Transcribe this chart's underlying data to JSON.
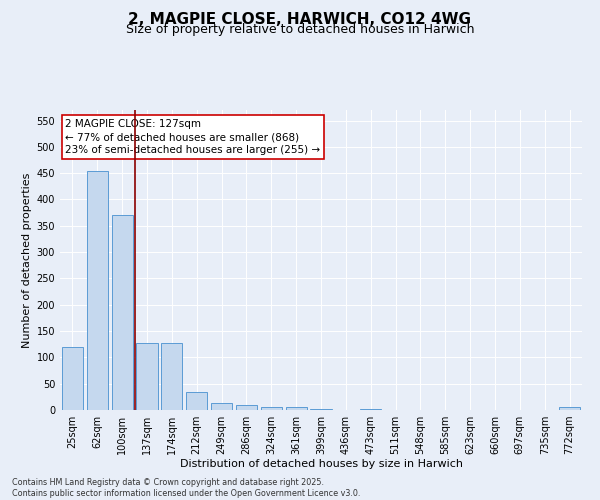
{
  "title": "2, MAGPIE CLOSE, HARWICH, CO12 4WG",
  "subtitle": "Size of property relative to detached houses in Harwich",
  "xlabel": "Distribution of detached houses by size in Harwich",
  "ylabel": "Number of detached properties",
  "categories": [
    "25sqm",
    "62sqm",
    "100sqm",
    "137sqm",
    "174sqm",
    "212sqm",
    "249sqm",
    "286sqm",
    "324sqm",
    "361sqm",
    "399sqm",
    "436sqm",
    "473sqm",
    "511sqm",
    "548sqm",
    "585sqm",
    "623sqm",
    "660sqm",
    "697sqm",
    "735sqm",
    "772sqm"
  ],
  "values": [
    120,
    455,
    370,
    128,
    128,
    34,
    14,
    9,
    5,
    6,
    1,
    0,
    2,
    0,
    0,
    0,
    0,
    0,
    0,
    0,
    5
  ],
  "bar_color": "#c5d8ee",
  "bar_edge_color": "#5b9bd5",
  "annotation_text": "2 MAGPIE CLOSE: 127sqm\n← 77% of detached houses are smaller (868)\n23% of semi-detached houses are larger (255) →",
  "vline_x_index": 2.5,
  "vline_color": "#8b0000",
  "annotation_box_color": "#cc0000",
  "background_color": "#e8eef8",
  "plot_bg_color": "#e8eef8",
  "ylim": [
    0,
    570
  ],
  "yticks": [
    0,
    50,
    100,
    150,
    200,
    250,
    300,
    350,
    400,
    450,
    500,
    550
  ],
  "grid_color": "#ffffff",
  "footnote": "Contains HM Land Registry data © Crown copyright and database right 2025.\nContains public sector information licensed under the Open Government Licence v3.0.",
  "title_fontsize": 11,
  "subtitle_fontsize": 9,
  "xlabel_fontsize": 8,
  "ylabel_fontsize": 8,
  "tick_fontsize": 7,
  "annot_fontsize": 7.5,
  "footnote_fontsize": 5.8
}
